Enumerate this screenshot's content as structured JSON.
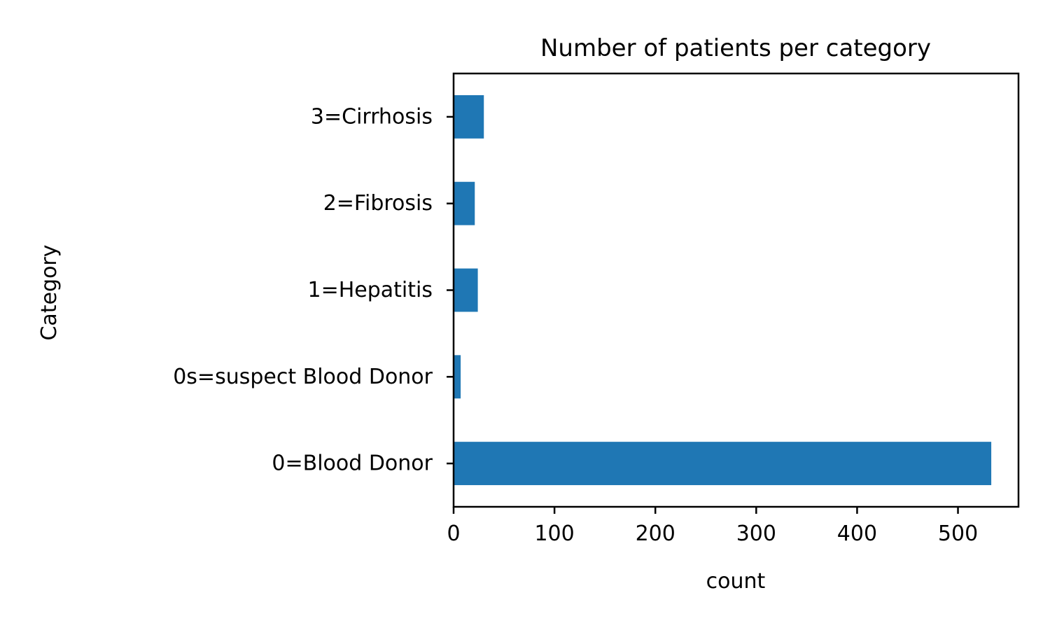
{
  "chart_data": {
    "type": "bar",
    "orientation": "horizontal",
    "title": "Number of patients per category",
    "xlabel": "count",
    "ylabel": "Category",
    "categories": [
      "0=Blood Donor",
      "0s=suspect Blood Donor",
      "1=Hepatitis",
      "2=Fibrosis",
      "3=Cirrhosis"
    ],
    "values": [
      533,
      7,
      24,
      21,
      30
    ],
    "xlim": [
      0,
      560
    ],
    "xticks": [
      0,
      100,
      200,
      300,
      400,
      500
    ],
    "grid": false,
    "legend": "none",
    "colors": {
      "bar": "#1f77b4",
      "axis": "#000000"
    }
  }
}
